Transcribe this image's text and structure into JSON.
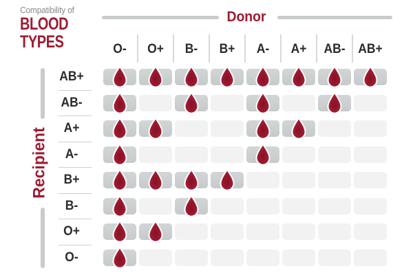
{
  "header": {
    "eyebrow": "Compatibility of",
    "title_line1": "BLOOD",
    "title_line2": "TYPES",
    "donor_label": "Donor"
  },
  "side": {
    "recipient_label": "Recipient"
  },
  "icons": {
    "compatible_marker": "blood-drop-icon"
  },
  "colors": {
    "accent_red": "#9e1b32",
    "drop_red_dark": "#871024",
    "drop_red_light": "#a82138",
    "filled_cell_gray": "#cccfcf",
    "empty_cell_gray": "#f2f2f2",
    "divider_gray": "#c9cccc",
    "header_text": "#2b2b2b",
    "eyebrow_text": "#8a8a8a"
  },
  "chart_data": {
    "type": "heatmap",
    "title": "Compatibility of Blood Types",
    "x_axis_label": "Donor",
    "y_axis_label": "Recipient",
    "columns": [
      "O-",
      "O+",
      "B-",
      "B+",
      "A-",
      "A+",
      "AB-",
      "AB+"
    ],
    "rows": [
      "AB+",
      "AB-",
      "A+",
      "A-",
      "B+",
      "B-",
      "O+",
      "O-"
    ],
    "values": [
      [
        1,
        1,
        1,
        1,
        1,
        1,
        1,
        1
      ],
      [
        1,
        0,
        1,
        0,
        1,
        0,
        1,
        0
      ],
      [
        1,
        1,
        0,
        0,
        1,
        1,
        0,
        0
      ],
      [
        1,
        0,
        0,
        0,
        1,
        0,
        0,
        0
      ],
      [
        1,
        1,
        1,
        1,
        0,
        0,
        0,
        0
      ],
      [
        1,
        0,
        1,
        0,
        0,
        0,
        0,
        0
      ],
      [
        1,
        1,
        0,
        0,
        0,
        0,
        0,
        0
      ],
      [
        1,
        0,
        0,
        0,
        0,
        0,
        0,
        0
      ]
    ],
    "value_meaning": "1 = compatible (blood drop icon shown in gray cell), 0 = not compatible (empty light-gray cell)",
    "legend": false,
    "grid": true
  }
}
